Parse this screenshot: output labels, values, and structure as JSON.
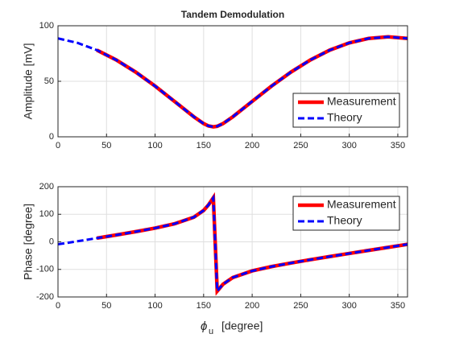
{
  "chart_data": [
    {
      "type": "line",
      "title": "Tandem Demodulation",
      "ylabel": "Amplitude  [mV]",
      "x": [
        0,
        20,
        40,
        60,
        80,
        100,
        120,
        140,
        150,
        155,
        160,
        164,
        170,
        180,
        200,
        220,
        240,
        260,
        280,
        300,
        320,
        340,
        360
      ],
      "series": [
        {
          "name": "Measurement",
          "color": "#ff0000",
          "dash": false,
          "values": [
            null,
            null,
            78.1,
            69.2,
            58.3,
            45.7,
            31.9,
            18.0,
            11.9,
            9.8,
            9.0,
            9.5,
            11.9,
            18.0,
            31.9,
            45.7,
            58.3,
            69.2,
            78.1,
            84.6,
            88.6,
            90.0,
            88.6
          ]
        },
        {
          "name": "Theory",
          "color": "#0000ff",
          "dash": true,
          "values": [
            88.6,
            84.6,
            78.1,
            69.2,
            58.3,
            45.7,
            31.9,
            18.0,
            11.9,
            9.8,
            9.0,
            9.5,
            11.9,
            18.0,
            31.9,
            45.7,
            58.3,
            69.2,
            78.1,
            84.6,
            88.6,
            90.0,
            88.6
          ]
        }
      ],
      "xlim": [
        0,
        360
      ],
      "xticks": [
        0,
        50,
        100,
        150,
        200,
        250,
        300,
        350
      ],
      "ylim": [
        0,
        100
      ],
      "yticks": [
        0,
        50,
        100
      ],
      "grid": true,
      "legend": "lower right"
    },
    {
      "type": "line",
      "ylabel": "Phase  [degree]",
      "xlabel": "ϕ",
      "xlabel_subscript": "u",
      "xlabel_unit": "[degree]",
      "x": [
        0,
        20,
        40,
        60,
        80,
        100,
        120,
        140,
        150,
        155,
        160,
        164,
        170,
        180,
        200,
        220,
        240,
        260,
        280,
        300,
        320,
        340,
        360
      ],
      "series": [
        {
          "name": "Measurement",
          "color": "#ff0000",
          "dash": false,
          "values": [
            null,
            null,
            13.3,
            24.8,
            36.8,
            49.8,
            65.4,
            89.5,
            113.8,
            133.9,
            160.0,
            -178.8,
            -153.8,
            -129.5,
            -105.4,
            -89.8,
            -76.8,
            -64.8,
            -53.3,
            -42.1,
            -31.0,
            -20.0,
            -9.0
          ]
        },
        {
          "name": "Theory",
          "color": "#0000ff",
          "dash": true,
          "values": [
            -9.0,
            2.1,
            13.3,
            24.8,
            36.8,
            49.8,
            65.4,
            89.5,
            113.8,
            133.9,
            160.0,
            -178.8,
            -153.8,
            -129.5,
            -105.4,
            -89.8,
            -76.8,
            -64.8,
            -53.3,
            -42.1,
            -31.0,
            -20.0,
            -9.0
          ]
        }
      ],
      "xlim": [
        0,
        360
      ],
      "xticks": [
        0,
        50,
        100,
        150,
        200,
        250,
        300,
        350
      ],
      "ylim": [
        -200,
        200
      ],
      "yticks": [
        -200,
        -100,
        0,
        100,
        200
      ],
      "grid": true,
      "legend": "upper right"
    }
  ]
}
